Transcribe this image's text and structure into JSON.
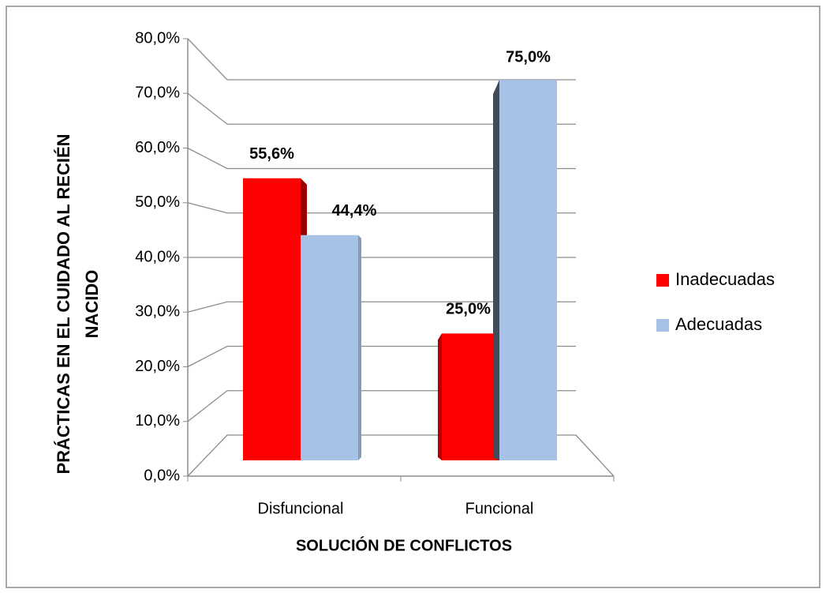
{
  "chart_data": {
    "type": "bar3d",
    "xlabel": "SOLUCIÓN DE CONFLICTOS",
    "ylabel": [
      "PRÁCTICAS EN EL CUIDADO AL RECIÉN",
      "NACIDO"
    ],
    "categories": [
      "Disfuncional",
      "Funcional"
    ],
    "series": [
      {
        "name": "Inadecuadas",
        "color": "#ff0000",
        "values": [
          55.6,
          25.0
        ],
        "value_labels": [
          "55,6%",
          "25,0%"
        ]
      },
      {
        "name": "Adecuadas",
        "color": "#a6c2e6",
        "values": [
          44.4,
          75.0
        ],
        "value_labels": [
          "44,4%",
          "75,0%"
        ]
      }
    ],
    "ylim": [
      0,
      80
    ],
    "yticks": [
      {
        "value": 0,
        "label": "0,0%"
      },
      {
        "value": 10,
        "label": "10,0%"
      },
      {
        "value": 20,
        "label": "20,0%"
      },
      {
        "value": 30,
        "label": "30,0%"
      },
      {
        "value": 40,
        "label": "40,0%"
      },
      {
        "value": 50,
        "label": "50,0%"
      },
      {
        "value": 60,
        "label": "60,0%"
      },
      {
        "value": 70,
        "label": "70,0%"
      },
      {
        "value": 80,
        "label": "80,0%"
      }
    ],
    "grid": true,
    "legend": "right"
  }
}
